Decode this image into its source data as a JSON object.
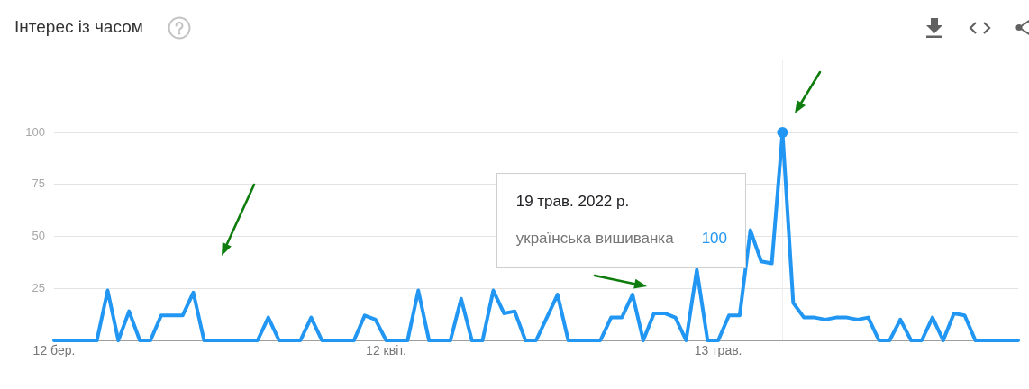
{
  "chart_data": {
    "type": "line",
    "title": "Інтерес із часом",
    "x": [
      "2022-03-12",
      "2022-03-13",
      "2022-03-14",
      "2022-03-15",
      "2022-03-16",
      "2022-03-17",
      "2022-03-18",
      "2022-03-19",
      "2022-03-20",
      "2022-03-21",
      "2022-03-22",
      "2022-03-23",
      "2022-03-24",
      "2022-03-25",
      "2022-03-26",
      "2022-03-27",
      "2022-03-28",
      "2022-03-29",
      "2022-03-30",
      "2022-03-31",
      "2022-04-01",
      "2022-04-02",
      "2022-04-03",
      "2022-04-04",
      "2022-04-05",
      "2022-04-06",
      "2022-04-07",
      "2022-04-08",
      "2022-04-09",
      "2022-04-10",
      "2022-04-11",
      "2022-04-12",
      "2022-04-13",
      "2022-04-14",
      "2022-04-15",
      "2022-04-16",
      "2022-04-17",
      "2022-04-18",
      "2022-04-19",
      "2022-04-20",
      "2022-04-21",
      "2022-04-22",
      "2022-04-23",
      "2022-04-24",
      "2022-04-25",
      "2022-04-26",
      "2022-04-27",
      "2022-04-28",
      "2022-04-29",
      "2022-04-30",
      "2022-05-01",
      "2022-05-02",
      "2022-05-03",
      "2022-05-04",
      "2022-05-05",
      "2022-05-06",
      "2022-05-07",
      "2022-05-08",
      "2022-05-09",
      "2022-05-10",
      "2022-05-11",
      "2022-05-12",
      "2022-05-13",
      "2022-05-14",
      "2022-05-15",
      "2022-05-16",
      "2022-05-17",
      "2022-05-18",
      "2022-05-19",
      "2022-05-20",
      "2022-05-21",
      "2022-05-22",
      "2022-05-23",
      "2022-05-24",
      "2022-05-25",
      "2022-05-26",
      "2022-05-27",
      "2022-05-28",
      "2022-05-29",
      "2022-05-30",
      "2022-05-31",
      "2022-06-01",
      "2022-06-02",
      "2022-06-03",
      "2022-06-04",
      "2022-06-05",
      "2022-06-06",
      "2022-06-07",
      "2022-06-08",
      "2022-06-09",
      "2022-06-10"
    ],
    "series": [
      {
        "name": "українська вишиванка",
        "color": "#2196f3",
        "values": [
          0,
          0,
          0,
          0,
          0,
          24,
          0,
          14,
          0,
          0,
          12,
          12,
          12,
          23,
          0,
          0,
          0,
          0,
          0,
          0,
          11,
          0,
          0,
          0,
          11,
          0,
          0,
          0,
          0,
          12,
          10,
          0,
          0,
          0,
          24,
          0,
          0,
          0,
          20,
          0,
          0,
          24,
          13,
          14,
          0,
          0,
          11,
          22,
          0,
          0,
          0,
          0,
          11,
          11,
          22,
          0,
          13,
          13,
          11,
          0,
          34,
          0,
          0,
          12,
          12,
          53,
          38,
          37,
          100,
          18,
          11,
          11,
          10,
          11,
          11,
          10,
          11,
          0,
          0,
          10,
          0,
          0,
          11,
          0,
          13,
          12,
          0,
          0,
          0,
          0,
          0
        ]
      },
      {
        "type": "scatter",
        "color": "#2196f3",
        "marker": "circle",
        "x": [
          "2022-05-19"
        ],
        "values": [
          100
        ]
      }
    ],
    "xlim": [
      "2022-03-12",
      "2022-06-10"
    ],
    "xticks": [
      {
        "value": "2022-03-12",
        "label": "12 бер."
      },
      {
        "value": "2022-04-12",
        "label": "12 квіт."
      },
      {
        "value": "2022-05-13",
        "label": "13 трав."
      }
    ],
    "ylim": [
      0,
      100
    ],
    "yticks": [
      {
        "value": 0,
        "label": null
      },
      25,
      50,
      75,
      100
    ],
    "grid": "y",
    "marker": "none",
    "line_style": "solid",
    "ref_lines": [
      {
        "axis": "x",
        "value": "2022-05-19",
        "color": "#eeeeee"
      }
    ],
    "annotations": [
      "19 трав. 2022 р.",
      "100"
    ]
  }
}
